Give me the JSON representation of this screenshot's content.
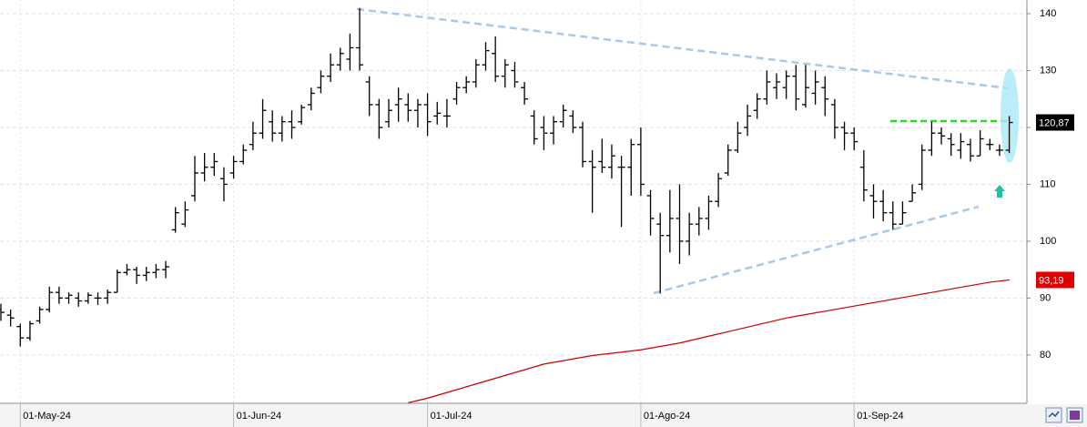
{
  "chart_data": {
    "type": "ohlc",
    "categories": [
      null,
      null,
      "01-May-24",
      null,
      null,
      null,
      null,
      null,
      null,
      null,
      null,
      null,
      null,
      null,
      null,
      null,
      null,
      null,
      null,
      null,
      null,
      null,
      null,
      null,
      "01-Jun-24",
      null,
      null,
      null,
      null,
      null,
      null,
      null,
      null,
      null,
      null,
      null,
      null,
      null,
      null,
      null,
      null,
      null,
      null,
      null,
      "01-Jul-24",
      null,
      null,
      null,
      null,
      null,
      null,
      null,
      null,
      null,
      null,
      null,
      null,
      null,
      null,
      null,
      null,
      null,
      null,
      null,
      null,
      null,
      "01-Ago-24",
      null,
      null,
      null,
      null,
      null,
      null,
      null,
      null,
      null,
      null,
      null,
      null,
      null,
      null,
      null,
      null,
      null,
      null,
      null,
      null,
      null,
      "01-Sep-24",
      null,
      null,
      null,
      null,
      null,
      null,
      null,
      null,
      null,
      null,
      null,
      null,
      null,
      null,
      null,
      null
    ],
    "open": [
      88,
      87,
      85,
      83,
      86,
      88,
      91,
      90,
      90,
      89.5,
      90,
      90,
      91,
      94.5,
      95,
      94,
      94.5,
      95,
      102,
      103,
      108,
      112,
      113,
      111,
      112,
      114,
      117,
      119,
      121,
      119,
      121,
      121,
      124,
      127,
      129,
      131,
      132,
      134,
      128,
      124,
      121,
      124,
      124,
      123,
      124,
      122,
      122,
      125,
      127,
      128,
      131,
      133,
      129,
      130,
      127,
      122,
      120,
      119,
      121,
      122,
      120,
      114,
      114,
      113,
      113,
      113,
      117,
      108,
      103,
      101,
      104,
      100,
      103,
      104,
      107,
      112,
      116,
      120,
      123,
      125,
      127,
      127,
      129,
      124,
      126,
      127,
      124,
      120,
      119,
      113,
      108,
      107,
      105,
      103,
      107,
      110,
      116,
      119,
      118,
      116,
      117,
      115,
      117,
      116,
      116
    ],
    "high": [
      89,
      88,
      85.5,
      86,
      88.5,
      92,
      92,
      91,
      91,
      91,
      91,
      91.5,
      95,
      96,
      95.5,
      95.5,
      96,
      96.5,
      106,
      107,
      115,
      115.5,
      115.5,
      113,
      115,
      117,
      121,
      125,
      123,
      122,
      123,
      124,
      127,
      130,
      133,
      134,
      136.5,
      141,
      129,
      125,
      125,
      127,
      126,
      125,
      126,
      124.5,
      125,
      128,
      129,
      132,
      135,
      136,
      132,
      131.5,
      128,
      123,
      122,
      122,
      124,
      123,
      121,
      116,
      118,
      117,
      115,
      118,
      120,
      109,
      105,
      109,
      110,
      105,
      106,
      108,
      112,
      117,
      121,
      124,
      126,
      130,
      129.5,
      130,
      131,
      131,
      130,
      129,
      125,
      121,
      120,
      116,
      110,
      109,
      107,
      107,
      110,
      117,
      121,
      120,
      119,
      119,
      118,
      119.5,
      118,
      117,
      122
    ],
    "low": [
      86,
      85,
      81.5,
      82.5,
      85.5,
      87.5,
      89,
      89,
      88.5,
      89,
      88.8,
      89,
      91,
      94,
      92.5,
      93,
      93.5,
      93.5,
      101.5,
      102.5,
      107,
      110.5,
      111.5,
      107,
      111,
      113.5,
      116,
      118,
      117.5,
      117.5,
      118,
      120.5,
      123,
      126,
      128,
      130,
      130,
      130,
      122,
      118,
      120,
      121,
      121,
      120,
      118.5,
      120.5,
      120,
      124,
      126,
      127,
      130,
      128,
      127,
      127,
      124,
      117,
      116,
      117,
      120,
      119,
      113,
      105,
      112,
      111,
      102.5,
      108,
      108,
      101,
      90.8,
      98,
      96,
      97.5,
      101,
      102,
      106,
      111.5,
      115.5,
      118.5,
      121.5,
      124,
      125,
      125,
      123,
      123.5,
      124,
      122,
      118,
      116,
      116,
      107,
      104,
      103.5,
      102,
      103,
      107,
      109,
      115,
      117,
      115,
      114.5,
      114,
      115,
      116,
      115,
      115.5
    ],
    "close": [
      87.5,
      86.5,
      83,
      85.5,
      88,
      91,
      90,
      90.5,
      89.5,
      90.5,
      90,
      91,
      94.5,
      95,
      94,
      94.5,
      95,
      95.5,
      105,
      105.5,
      112,
      113,
      114,
      110,
      114,
      116,
      119,
      123,
      119,
      121,
      120,
      123.5,
      126,
      129,
      131,
      133,
      134,
      131,
      124,
      120,
      123,
      125,
      123,
      124,
      121,
      122.5,
      122,
      127,
      128,
      131,
      133.5,
      129,
      131,
      128,
      125,
      118,
      119,
      121,
      123,
      120,
      114,
      113,
      113,
      115,
      113,
      117,
      110,
      104,
      101,
      104,
      100,
      103,
      104,
      107,
      111,
      116,
      119,
      122,
      125,
      128,
      128,
      129,
      125,
      127,
      128,
      125,
      120,
      119,
      117.5,
      109,
      107,
      105,
      103,
      105,
      108.5,
      116,
      119,
      118.5,
      117,
      117.5,
      115,
      118,
      117,
      116,
      120.87
    ],
    "color": "#000000",
    "moving_average": {
      "color": "#cc0000",
      "values": [
        null,
        null,
        null,
        null,
        null,
        null,
        null,
        null,
        null,
        null,
        null,
        null,
        null,
        null,
        null,
        null,
        null,
        null,
        null,
        null,
        null,
        null,
        null,
        null,
        null,
        null,
        null,
        null,
        null,
        null,
        null,
        null,
        null,
        null,
        null,
        null,
        null,
        null,
        null,
        null,
        null,
        null,
        71.6,
        72.0,
        72.4,
        72.9,
        73.4,
        73.9,
        74.4,
        74.9,
        75.4,
        75.9,
        76.4,
        76.9,
        77.4,
        77.9,
        78.4,
        78.7,
        79.0,
        79.3,
        79.6,
        79.9,
        80.1,
        80.3,
        80.5,
        80.7,
        80.9,
        81.2,
        81.5,
        81.8,
        82.1,
        82.5,
        82.9,
        83.3,
        83.7,
        84.1,
        84.5,
        84.9,
        85.3,
        85.7,
        86.1,
        86.5,
        86.8,
        87.1,
        87.4,
        87.7,
        88.0,
        88.3,
        88.6,
        88.9,
        89.2,
        89.5,
        89.8,
        90.1,
        90.4,
        90.7,
        91.0,
        91.3,
        91.6,
        91.9,
        92.2,
        92.5,
        92.8,
        93.0,
        93.19
      ]
    },
    "last_price": {
      "value": 120.87,
      "label": "120,87"
    },
    "ma_last": {
      "value": 93.19,
      "label": "93,19"
    },
    "ylim": [
      71.5,
      142.4
    ],
    "yticks": [
      80,
      90,
      100,
      110,
      120,
      130,
      140
    ],
    "grid": true
  }
}
